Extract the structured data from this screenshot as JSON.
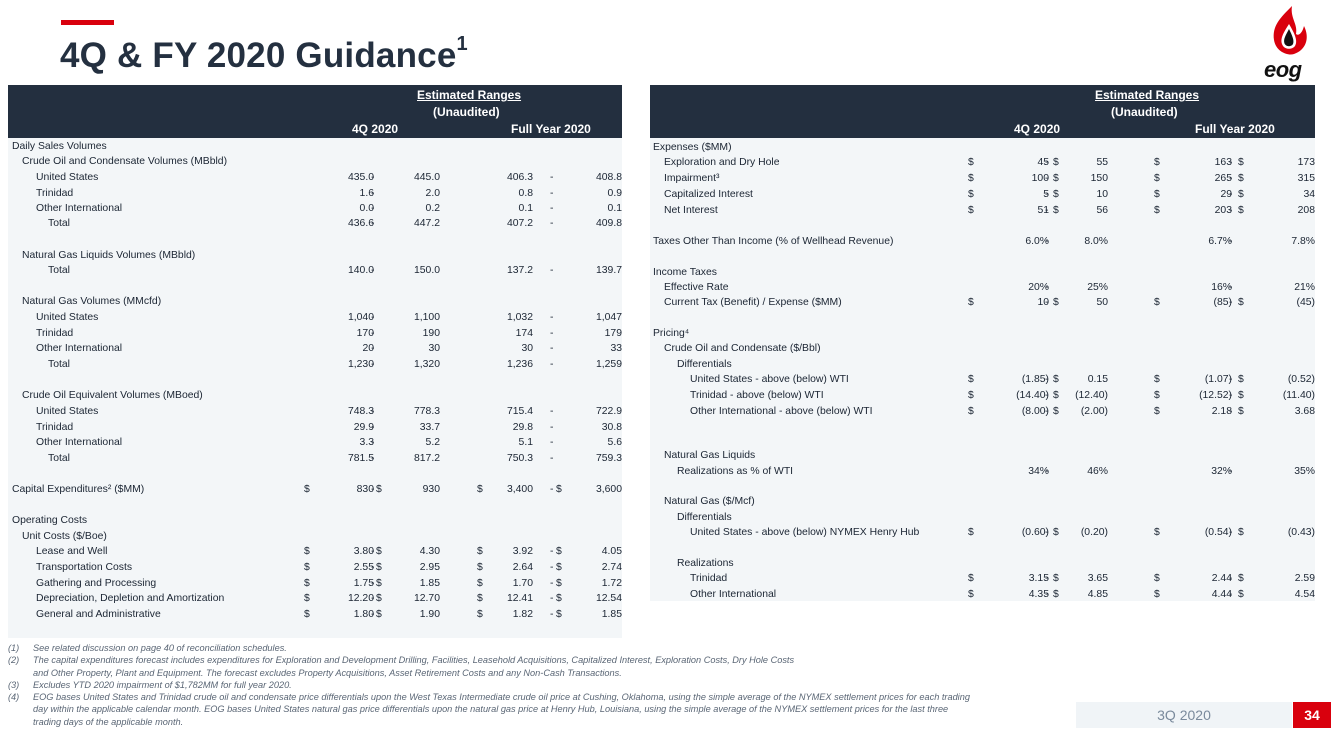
{
  "slide": {
    "title": "4Q & FY 2020 Guidance",
    "title_superscript": "1",
    "accent_color": "#d9000d",
    "header_color": "#232f3f",
    "logo_text": "eog",
    "quarter_label": "3Q 2020",
    "page_number": "34"
  },
  "left_table": {
    "header": {
      "estimated": "Estimated Ranges",
      "unaudited": "(Unaudited)",
      "q4": "4Q 2020",
      "fy": "Full Year 2020"
    },
    "rows": [
      {
        "label": "Daily Sales Volumes",
        "indent": 0
      },
      {
        "label": "Crude Oil and Condensate Volumes (MBbld)",
        "indent": 1
      },
      {
        "label": "United States",
        "indent": 2,
        "q4_low": "435.0",
        "q4_high": "445.0",
        "fy_low": "406.3",
        "fy_high": "408.8"
      },
      {
        "label": "Trinidad",
        "indent": 2,
        "q4_low": "1.6",
        "q4_high": "2.0",
        "fy_low": "0.8",
        "fy_high": "0.9"
      },
      {
        "label": "Other International",
        "indent": 2,
        "q4_low": "0.0",
        "q4_high": "0.2",
        "fy_low": "0.1",
        "fy_high": "0.1"
      },
      {
        "label": "Total",
        "indent": 3,
        "q4_low": "436.6",
        "q4_high": "447.2",
        "fy_low": "407.2",
        "fy_high": "409.8"
      },
      {
        "label": "Natural Gas Liquids Volumes (MBbld)",
        "indent": 1
      },
      {
        "label": "Total",
        "indent": 3,
        "q4_low": "140.0",
        "q4_high": "150.0",
        "fy_low": "137.2",
        "fy_high": "139.7"
      },
      {
        "label": "Natural Gas Volumes (MMcfd)",
        "indent": 1
      },
      {
        "label": "United States",
        "indent": 2,
        "q4_low": "1,040",
        "q4_high": "1,100",
        "fy_low": "1,032",
        "fy_high": "1,047"
      },
      {
        "label": "Trinidad",
        "indent": 2,
        "q4_low": "170",
        "q4_high": "190",
        "fy_low": "174",
        "fy_high": "179"
      },
      {
        "label": "Other International",
        "indent": 2,
        "q4_low": "20",
        "q4_high": "30",
        "fy_low": "30",
        "fy_high": "33"
      },
      {
        "label": "Total",
        "indent": 3,
        "q4_low": "1,230",
        "q4_high": "1,320",
        "fy_low": "1,236",
        "fy_high": "1,259"
      },
      {
        "label": "Crude Oil Equivalent Volumes (MBoed)",
        "indent": 1
      },
      {
        "label": "United States",
        "indent": 2,
        "q4_low": "748.3",
        "q4_high": "778.3",
        "fy_low": "715.4",
        "fy_high": "722.9"
      },
      {
        "label": "Trinidad",
        "indent": 2,
        "q4_low": "29.9",
        "q4_high": "33.7",
        "fy_low": "29.8",
        "fy_high": "30.8"
      },
      {
        "label": "Other International",
        "indent": 2,
        "q4_low": "3.3",
        "q4_high": "5.2",
        "fy_low": "5.1",
        "fy_high": "5.6"
      },
      {
        "label": "Total",
        "indent": 3,
        "q4_low": "781.5",
        "q4_high": "817.2",
        "fy_low": "750.3",
        "fy_high": "759.3"
      },
      {
        "label": "Capital Expenditures² ($MM)",
        "indent": 0,
        "q4_low": "830",
        "q4_high": "930",
        "fy_low": "3,400",
        "fy_high": "3,600",
        "dollar": true
      },
      {
        "label": "Operating Costs",
        "indent": 0
      },
      {
        "label": "Unit Costs ($/Boe)",
        "indent": 1
      },
      {
        "label": "Lease and Well",
        "indent": 2,
        "q4_low": "3.80",
        "q4_high": "4.30",
        "fy_low": "3.92",
        "fy_high": "4.05",
        "dollar": true
      },
      {
        "label": "Transportation Costs",
        "indent": 2,
        "q4_low": "2.55",
        "q4_high": "2.95",
        "fy_low": "2.64",
        "fy_high": "2.74",
        "dollar": true
      },
      {
        "label": "Gathering and Processing",
        "indent": 2,
        "q4_low": "1.75",
        "q4_high": "1.85",
        "fy_low": "1.70",
        "fy_high": "1.72",
        "dollar": true
      },
      {
        "label": "Depreciation, Depletion and Amortization",
        "indent": 2,
        "q4_low": "12.20",
        "q4_high": "12.70",
        "fy_low": "12.41",
        "fy_high": "12.54",
        "dollar": true
      },
      {
        "label": "General and Administrative",
        "indent": 2,
        "q4_low": "1.80",
        "q4_high": "1.90",
        "fy_low": "1.82",
        "fy_high": "1.85",
        "dollar": true
      }
    ]
  },
  "right_table": {
    "header": {
      "estimated": "Estimated Ranges",
      "unaudited": "(Unaudited)",
      "q4": "4Q 2020",
      "fy": "Full Year 2020"
    },
    "rows": [
      {
        "label": "Expenses ($MM)",
        "indent": 0
      },
      {
        "label": "Exploration and Dry Hole",
        "indent": 1,
        "q4_low": "45",
        "q4_high": "55",
        "fy_low": "163",
        "fy_high": "173",
        "dollar": true
      },
      {
        "label": "Impairment³",
        "indent": 1,
        "q4_low": "100",
        "q4_high": "150",
        "fy_low": "265",
        "fy_high": "315",
        "dollar": true
      },
      {
        "label": "Capitalized Interest",
        "indent": 1,
        "q4_low": "5",
        "q4_high": "10",
        "fy_low": "29",
        "fy_high": "34",
        "dollar": true
      },
      {
        "label": "Net Interest",
        "indent": 1,
        "q4_low": "51",
        "q4_high": "56",
        "fy_low": "203",
        "fy_high": "208",
        "dollar": true
      },
      {
        "label": "Taxes Other Than Income (% of Wellhead Revenue)",
        "indent": 0,
        "q4_low": "6.0%",
        "q4_high": "8.0%",
        "fy_low": "6.7%",
        "fy_high": "7.8%"
      },
      {
        "label": "Income Taxes",
        "indent": 0
      },
      {
        "label": "Effective Rate",
        "indent": 1,
        "q4_low": "20%",
        "q4_high": "25%",
        "fy_low": "16%",
        "fy_high": "21%"
      },
      {
        "label": "Current Tax (Benefit) / Expense ($MM)",
        "indent": 1,
        "q4_low": "10",
        "q4_high": "50",
        "fy_low": "(85)",
        "fy_high": "(45)",
        "dollar": true
      },
      {
        "label": "Pricing⁴",
        "indent": 0
      },
      {
        "label": "Crude Oil and Condensate ($/Bbl)",
        "indent": 1
      },
      {
        "label": "Differentials",
        "indent": 2
      },
      {
        "label": "United States - above (below) WTI",
        "indent": 3,
        "q4_low": "(1.85)",
        "q4_high": "0.15",
        "fy_low": "(1.07)",
        "fy_high": "(0.52)",
        "dollar": true
      },
      {
        "label": "Trinidad - above (below) WTI",
        "indent": 3,
        "q4_low": "(14.40)",
        "q4_high": "(12.40)",
        "fy_low": "(12.52)",
        "fy_high": "(11.40)",
        "dollar": true
      },
      {
        "label": "Other International - above (below) WTI",
        "indent": 3,
        "q4_low": "(8.00)",
        "q4_high": "(2.00)",
        "fy_low": "2.18",
        "fy_high": "3.68",
        "dollar": true
      },
      {
        "label": "Natural Gas Liquids",
        "indent": 1
      },
      {
        "label": "Realizations as % of WTI",
        "indent": 2,
        "q4_low": "34%",
        "q4_high": "46%",
        "fy_low": "32%",
        "fy_high": "35%"
      },
      {
        "label": "Natural Gas ($/Mcf)",
        "indent": 1
      },
      {
        "label": "Differentials",
        "indent": 2
      },
      {
        "label": "United States - above (below) NYMEX Henry Hub",
        "indent": 3,
        "q4_low": "(0.60)",
        "q4_high": "(0.20)",
        "fy_low": "(0.54)",
        "fy_high": "(0.43)",
        "dollar": true
      },
      {
        "label": "Realizations",
        "indent": 2
      },
      {
        "label": "Trinidad",
        "indent": 3,
        "q4_low": "3.15",
        "q4_high": "3.65",
        "fy_low": "2.44",
        "fy_high": "2.59",
        "dollar": true
      },
      {
        "label": "Other International",
        "indent": 3,
        "q4_low": "4.35",
        "q4_high": "4.85",
        "fy_low": "4.44",
        "fy_high": "4.54",
        "dollar": true
      }
    ]
  },
  "footnotes": [
    {
      "num": "(1)",
      "text": "See related discussion on page 40 of reconciliation schedules."
    },
    {
      "num": "(2)",
      "text": "The capital expenditures forecast includes expenditures for Exploration and Development Drilling, Facilities, Leasehold Acquisitions, Capitalized Interest, Exploration Costs, Dry Hole Costs",
      "text2": "and Other Property, Plant and Equipment. The forecast excludes Property Acquisitions, Asset Retirement Costs and any Non-Cash Transactions."
    },
    {
      "num": "(3)",
      "text": "Excludes YTD 2020 impairment of $1,782MM for full year 2020."
    },
    {
      "num": "(4)",
      "text": "EOG bases United States and Trinidad crude oil and condensate price differentials upon the West Texas Intermediate crude oil price at Cushing, Oklahoma, using the simple average of the NYMEX settlement prices for each trading",
      "text2": "day within the applicable calendar month. EOG bases United States natural gas price differentials upon the natural gas price at Henry Hub, Louisiana, using the simple average of the NYMEX settlement prices for the last three",
      "text3": "trading days of the applicable month."
    }
  ]
}
